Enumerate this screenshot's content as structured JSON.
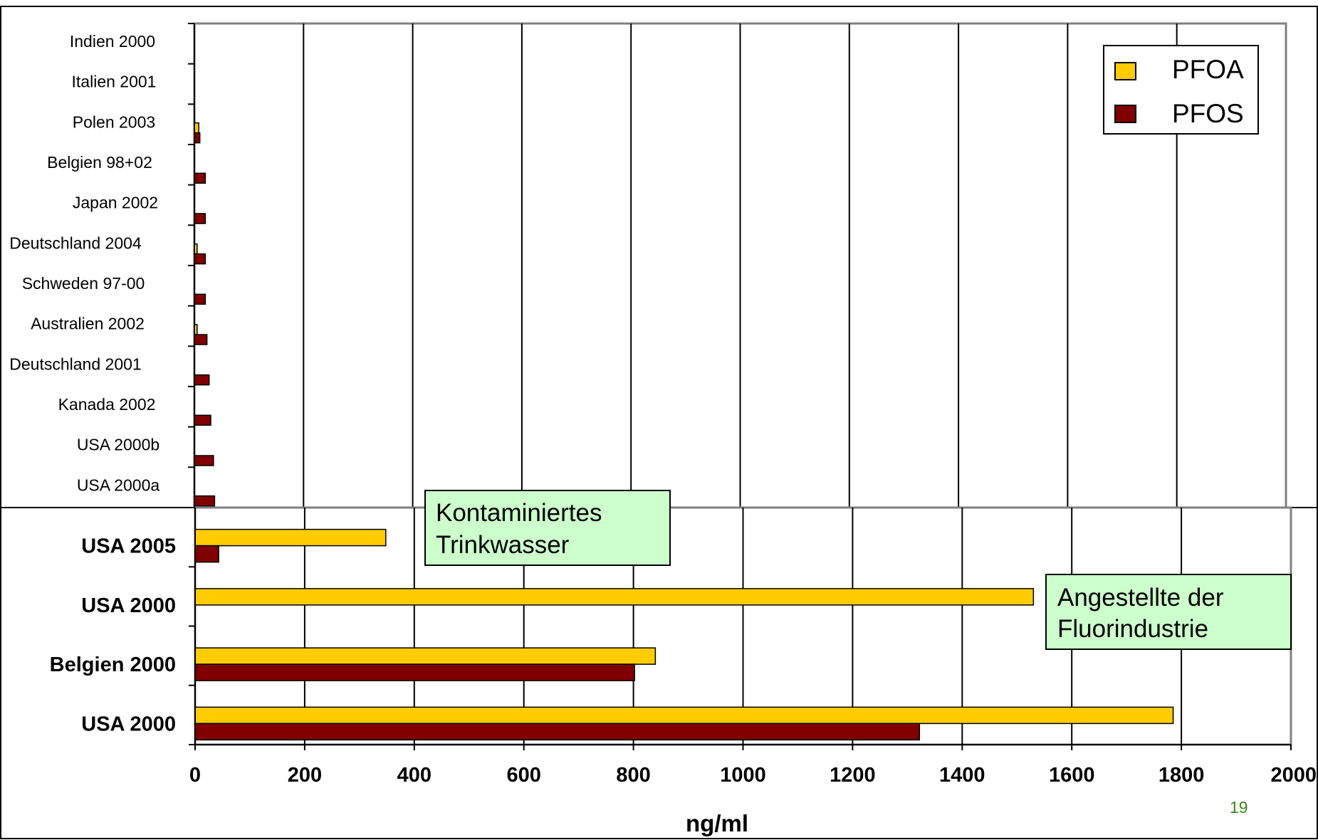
{
  "chart_data": [
    {
      "type": "bar",
      "orientation": "horizontal",
      "categories": [
        "Indien 2000",
        "Italien 2001",
        "Polen 2003",
        "Belgien 98+02",
        "Japan 2002",
        "Deutschland 2004",
        "Schweden 97-00",
        "Australien 2002",
        "Deutschland 2001",
        "Kanada 2002",
        "USA 2000b",
        "USA 2000a"
      ],
      "series": [
        {
          "name": "PFOA",
          "values": [
            0,
            0,
            8,
            0,
            0,
            5,
            0,
            5,
            0,
            0,
            0,
            0
          ]
        },
        {
          "name": "PFOS",
          "values": [
            0,
            0,
            10,
            20,
            20,
            20,
            20,
            23,
            27,
            30,
            35,
            37
          ]
        }
      ],
      "xlim": [
        0,
        2000
      ],
      "grid": true,
      "legend_position": "top-right"
    },
    {
      "type": "bar",
      "orientation": "horizontal",
      "categories": [
        "USA 2005",
        "USA 2000",
        "Belgien 2000",
        "USA 2000"
      ],
      "series": [
        {
          "name": "PFOA",
          "values": [
            348,
            1530,
            840,
            1785
          ]
        },
        {
          "name": "PFOS",
          "values": [
            43,
            0,
            802,
            1322
          ]
        }
      ],
      "xlim": [
        0,
        2000
      ],
      "xticks": [
        "0",
        "200",
        "400",
        "600",
        "800",
        "1000",
        "1200",
        "1400",
        "1600",
        "1800",
        "2000"
      ],
      "xlabel": "ng/ml",
      "grid": true
    }
  ],
  "legend": [
    {
      "label": "PFOA",
      "color": "#FFCC00"
    },
    {
      "label": "PFOS",
      "color": "#800000"
    }
  ],
  "annotations": {
    "water_line1": "Kontaminiertes",
    "water_line2": "Trinkwasser",
    "industry_line1": "Angestellte der",
    "industry_line2": "Fluorindustrie"
  },
  "colors": {
    "pfoa": "#FFCC00",
    "pfos": "#800000",
    "annotation_bg": "#CCFFCC",
    "page_number": "#3A8A1A"
  },
  "page_number": "19"
}
